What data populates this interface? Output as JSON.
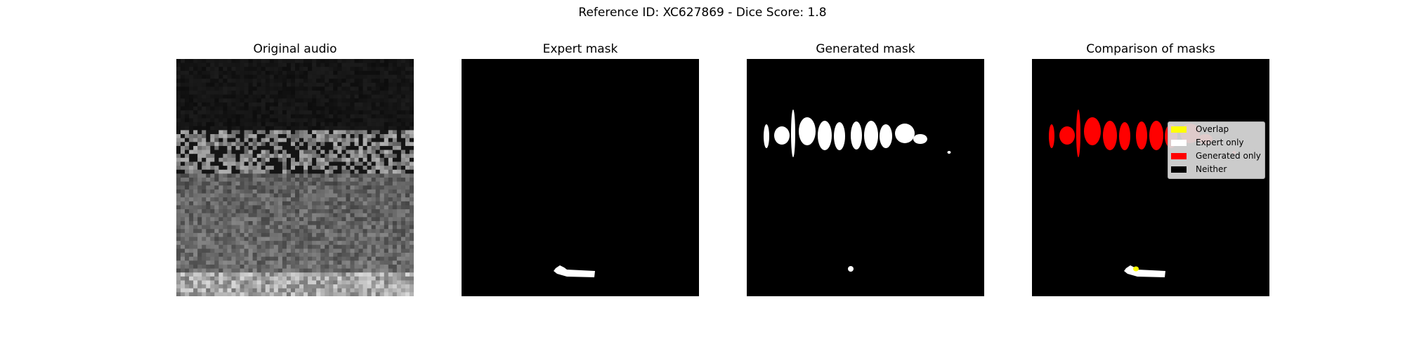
{
  "figure": {
    "suptitle": "Reference ID: XC627869 - Dice Score: 1.8"
  },
  "panels": [
    {
      "title": "Original audio"
    },
    {
      "title": "Expert mask"
    },
    {
      "title": "Generated mask"
    },
    {
      "title": "Comparison of masks"
    }
  ],
  "legend": {
    "items": [
      {
        "label": "Overlap",
        "color": "#ffff00"
      },
      {
        "label": "Expert only",
        "color": "#ffffff"
      },
      {
        "label": "Generated only",
        "color": "#ff0000"
      },
      {
        "label": "Neither",
        "color": "#000000"
      }
    ]
  },
  "colors": {
    "background": "#000000",
    "expert": "#ffffff",
    "generated": "#ffffff",
    "generated_only": "#ff0000",
    "overlap": "#ffff00"
  }
}
